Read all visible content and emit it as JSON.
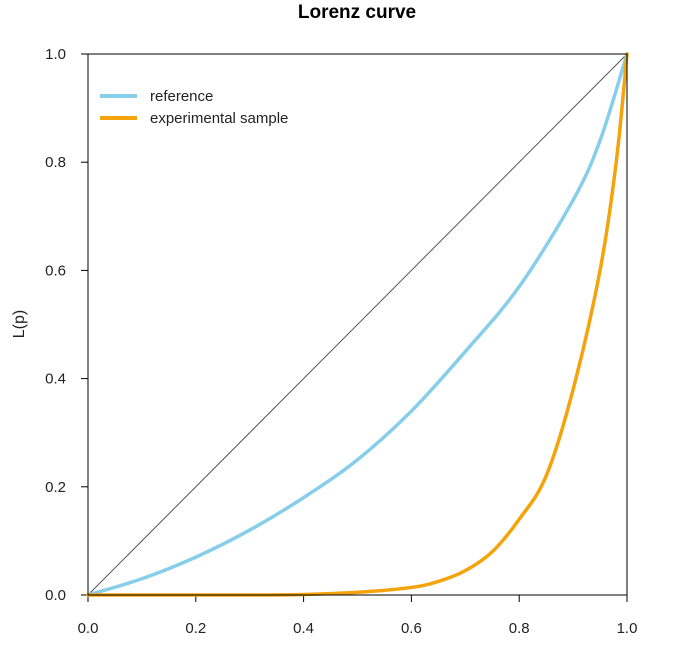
{
  "chart_data": {
    "type": "line",
    "title": "Lorenz curve",
    "xlabel": "",
    "ylabel": "L(p)",
    "xlim": [
      0,
      1
    ],
    "ylim": [
      0,
      1
    ],
    "x_ticks": [
      "0.0",
      "0.2",
      "0.4",
      "0.6",
      "0.8",
      "1.0"
    ],
    "y_ticks": [
      "0.0",
      "0.2",
      "0.4",
      "0.6",
      "0.8",
      "1.0"
    ],
    "grid": false,
    "legend_position": "top-left",
    "equality_line": {
      "x": [
        0,
        1
      ],
      "y": [
        0,
        1
      ],
      "color": "#555555"
    },
    "series": [
      {
        "name": "reference",
        "color": "#87CEEB",
        "x": [
          0.0,
          0.1,
          0.2,
          0.3,
          0.4,
          0.5,
          0.6,
          0.7,
          0.8,
          0.9,
          0.95,
          1.0
        ],
        "y": [
          0.0,
          0.03,
          0.07,
          0.12,
          0.18,
          0.25,
          0.34,
          0.45,
          0.57,
          0.73,
          0.84,
          1.0
        ]
      },
      {
        "name": "experimental sample",
        "color": "#F5A30A",
        "x": [
          0.0,
          0.3,
          0.4,
          0.5,
          0.6,
          0.65,
          0.7,
          0.75,
          0.8,
          0.85,
          0.9,
          0.95,
          0.98,
          1.0
        ],
        "y": [
          0.0,
          0.0,
          0.001,
          0.005,
          0.014,
          0.025,
          0.045,
          0.08,
          0.14,
          0.22,
          0.38,
          0.6,
          0.8,
          1.0
        ]
      }
    ]
  }
}
